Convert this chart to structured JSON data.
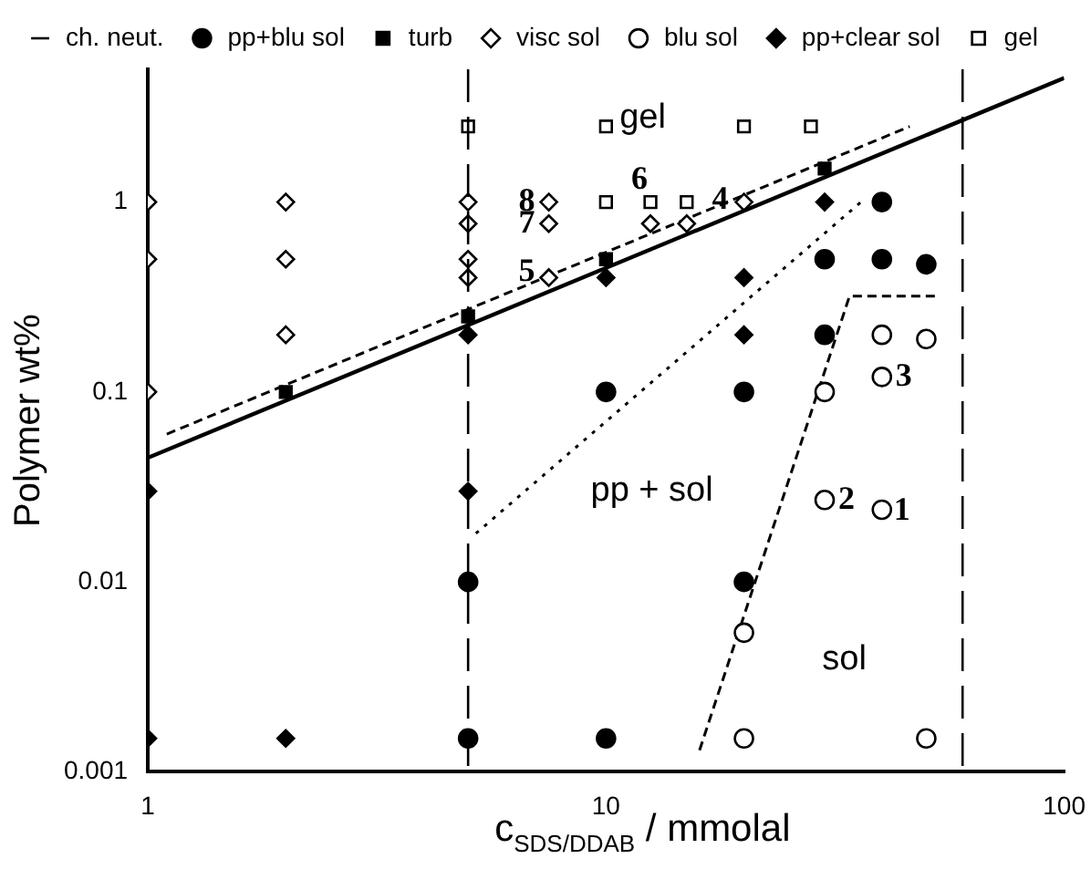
{
  "chart_data": {
    "type": "scatter",
    "xlabel": "c$_{SDS/DDAB}$ / mmolal",
    "ylabel": "Polymer wt%",
    "log": "xy",
    "xlim": [
      1,
      100
    ],
    "ylim": [
      0.001,
      5
    ],
    "xticks": [
      1,
      10,
      100
    ],
    "yticks": [
      0.001,
      0.01,
      0.1,
      1
    ],
    "grid": false,
    "legend": "top",
    "series": [
      {
        "name": "ch. neut.",
        "type": "line",
        "color": "#000000",
        "line_style": "solid",
        "marker": "none",
        "x": [
          1,
          100
        ],
        "values": [
          0.045,
          4.5
        ]
      },
      {
        "name": "pp+blu sol",
        "color": "#000000",
        "marker": "circle",
        "x": [
          40,
          30,
          40,
          50,
          30,
          10,
          20,
          5,
          5,
          10,
          20
        ],
        "values": [
          1,
          0.5,
          0.5,
          0.47,
          0.2,
          0.1,
          0.1,
          0.01,
          0.0015,
          0.0015,
          0.01
        ]
      },
      {
        "name": "turb",
        "color": "#000000",
        "marker": "square",
        "x": [
          2,
          5,
          10,
          30
        ],
        "values": [
          0.1,
          0.25,
          0.5,
          1.5
        ]
      },
      {
        "name": "visc sol",
        "color": "#ffffff",
        "marker": "diamond",
        "x": [
          1,
          1,
          1,
          2,
          2,
          2,
          5,
          5,
          5,
          5,
          7.5,
          7.5,
          7.5,
          12.5,
          15,
          20
        ],
        "values": [
          1,
          0.5,
          0.1,
          1,
          0.5,
          0.2,
          1,
          0.77,
          0.5,
          0.4,
          1,
          0.77,
          0.4,
          0.77,
          0.77,
          1
        ]
      },
      {
        "name": "blu sol",
        "color": "#ffffff",
        "marker": "circle",
        "x": [
          40,
          50,
          30,
          40,
          30,
          40,
          20,
          20,
          50
        ],
        "values": [
          0.2,
          0.19,
          0.1,
          0.12,
          0.027,
          0.024,
          0.0054,
          0.0015,
          0.0015
        ]
      },
      {
        "name": "pp+clear sol",
        "color": "#000000",
        "marker": "diamond",
        "x": [
          1,
          1,
          2,
          5,
          5,
          10,
          20,
          20,
          30
        ],
        "values": [
          0.03,
          0.0015,
          0.0015,
          0.03,
          0.2,
          0.4,
          0.4,
          0.2,
          1
        ]
      },
      {
        "name": "gel",
        "color": "#ffffff",
        "marker": "square",
        "x": [
          5,
          10,
          20,
          28,
          10,
          12.5,
          15
        ],
        "values": [
          2.5,
          2.5,
          2.5,
          2.5,
          1,
          1,
          1
        ]
      },
      {
        "type": "line",
        "color": "#000000",
        "line_style": "dashed",
        "marker": "none",
        "x": [
          1.1,
          46
        ],
        "values": [
          0.06,
          2.5
        ]
      },
      {
        "type": "line",
        "color": "#000000",
        "line_style": "dotted",
        "marker": "none",
        "x": [
          5.2,
          36
        ],
        "values": [
          0.018,
          1
        ]
      },
      {
        "type": "line",
        "color": "#000000",
        "line_style": "dashed",
        "marker": "none",
        "x": [
          16,
          34,
          53
        ],
        "values": [
          0.0013,
          0.32,
          0.32
        ]
      }
    ],
    "ref_lines": [
      {
        "axis": "x",
        "value": 5,
        "line_style": "dashed"
      },
      {
        "axis": "x",
        "value": 60,
        "line_style": "dashed"
      }
    ],
    "annotations": [
      "gel",
      "pp + sol",
      "sol",
      {
        "text": "8",
        "x": 7.5,
        "y": 1
      },
      {
        "text": "7",
        "x": 7.5,
        "y": 0.77
      },
      {
        "text": "5",
        "x": 7.5,
        "y": 0.4
      },
      {
        "text": "6",
        "x": 12.5,
        "y": 1
      },
      {
        "text": "4",
        "x": 20,
        "y": 1
      },
      {
        "text": "3",
        "x": 40,
        "y": 0.12
      },
      {
        "text": "2",
        "x": 30,
        "y": 0.027
      },
      {
        "text": "1",
        "x": 40,
        "y": 0.024
      }
    ]
  }
}
